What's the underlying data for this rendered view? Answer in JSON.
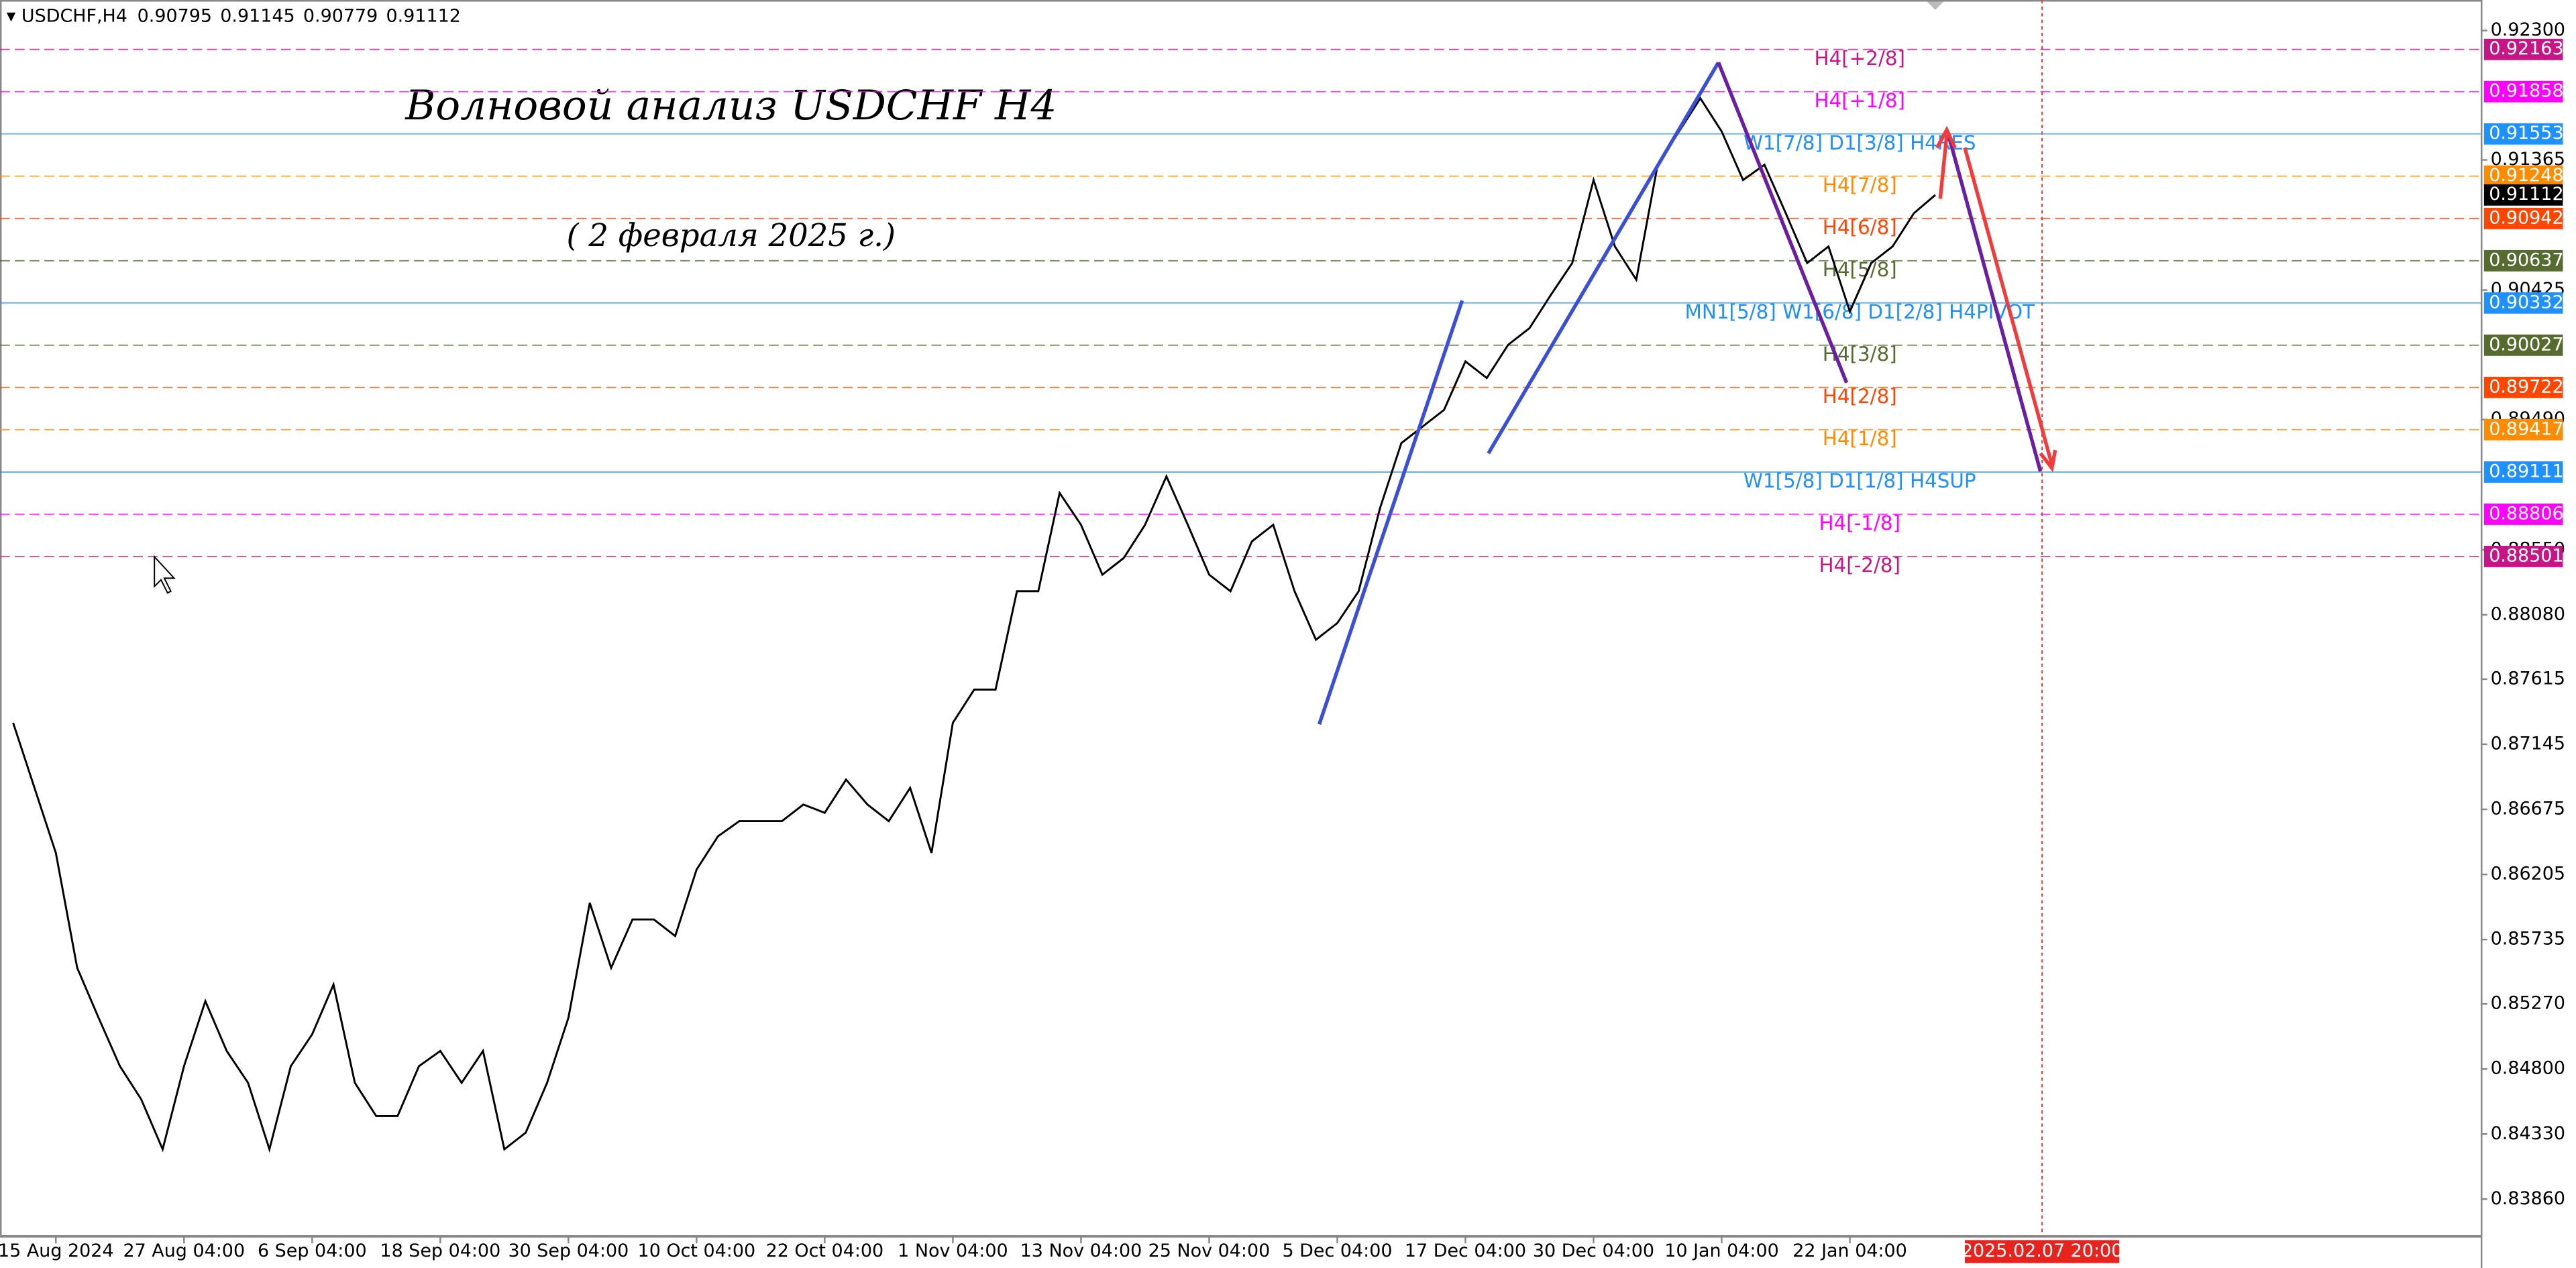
{
  "chart_data": {
    "type": "line",
    "symbol": "USDCHF,H4",
    "ohlc": [
      0.90795,
      0.91145,
      0.90779,
      0.91112
    ],
    "title": "Волновой анализ USDCHF H4",
    "subtitle": "( 2 февраля 2025 г.)",
    "color": "#000000",
    "categories": [
      null,
      null,
      "15 Aug 2024",
      null,
      null,
      null,
      null,
      null,
      "27 Aug 04:00",
      null,
      null,
      null,
      null,
      null,
      "6 Sep 04:00",
      null,
      null,
      null,
      null,
      null,
      "18 Sep 04:00",
      null,
      null,
      null,
      null,
      null,
      "30 Sep 04:00",
      null,
      null,
      null,
      null,
      null,
      "10 Oct 04:00",
      null,
      null,
      null,
      null,
      null,
      "22 Oct 04:00",
      null,
      null,
      null,
      null,
      null,
      "1 Nov 04:00",
      null,
      null,
      null,
      null,
      null,
      "13 Nov 04:00",
      null,
      null,
      null,
      null,
      null,
      "25 Nov 04:00",
      null,
      null,
      null,
      null,
      null,
      "5 Dec 04:00",
      null,
      null,
      null,
      null,
      null,
      "17 Dec 04:00",
      null,
      null,
      null,
      null,
      null,
      "30 Dec 04:00",
      null,
      null,
      null,
      null,
      null,
      "10 Jan 04:00",
      null,
      null,
      null,
      null,
      null,
      "22 Jan 04:00",
      null,
      null,
      null,
      null
    ],
    "values": [
      0.873,
      0.8683,
      0.8636,
      0.8553,
      0.8517,
      0.8482,
      0.8458,
      0.8422,
      0.8482,
      0.8529,
      0.8493,
      0.847,
      0.8422,
      0.8482,
      0.8505,
      0.8541,
      0.847,
      0.8446,
      0.8446,
      0.8482,
      0.8493,
      0.847,
      0.8493,
      0.8422,
      0.8434,
      0.847,
      0.8517,
      0.86,
      0.8553,
      0.8588,
      0.8588,
      0.8576,
      0.8624,
      0.8648,
      0.8659,
      0.8659,
      0.8659,
      0.8671,
      0.8665,
      0.8689,
      0.8671,
      0.8659,
      0.8683,
      0.8636,
      0.873,
      0.8754,
      0.8754,
      0.8825,
      0.8825,
      0.8896,
      0.8873,
      0.8837,
      0.8849,
      0.8873,
      0.8908,
      0.8873,
      0.8837,
      0.8825,
      0.8861,
      0.8873,
      0.8825,
      0.879,
      0.8802,
      0.8825,
      0.8885,
      0.8932,
      0.8944,
      0.8956,
      0.8991,
      0.8979,
      0.9003,
      0.9015,
      0.9039,
      0.9062,
      0.9122,
      0.9074,
      0.905,
      0.9133,
      0.9157,
      0.9181,
      0.9157,
      0.9122,
      0.9133,
      0.9098,
      0.9062,
      0.9074,
      0.9027,
      0.9062,
      0.9074,
      0.9098,
      0.91112
    ],
    "ylim": [
      0.836,
      0.9252
    ],
    "yticks": [
      {
        "value": 0.923,
        "label": "0.92300"
      },
      {
        "value": 0.91365,
        "label": "0.91365"
      },
      {
        "value": 0.90425,
        "label": "0.90425"
      },
      {
        "value": 0.8949,
        "label": "0.89490"
      },
      {
        "value": 0.8855,
        "label": "0.88550"
      },
      {
        "value": 0.8808,
        "label": "0.88080"
      },
      {
        "value": 0.87615,
        "label": "0.87615"
      },
      {
        "value": 0.87145,
        "label": "0.87145"
      },
      {
        "value": 0.86675,
        "label": "0.86675"
      },
      {
        "value": 0.86205,
        "label": "0.86205"
      },
      {
        "value": 0.85735,
        "label": "0.85735"
      },
      {
        "value": 0.8527,
        "label": "0.85270"
      },
      {
        "value": 0.848,
        "label": "0.84800"
      },
      {
        "value": 0.8433,
        "label": "0.84330"
      },
      {
        "value": 0.8386,
        "label": "0.83860"
      }
    ],
    "levels": [
      {
        "price": 0.92163,
        "label": "H4[+2/8]",
        "color": "#c71585",
        "dashed": true
      },
      {
        "price": 0.91858,
        "label": "H4[+1/8]",
        "color": "#ff00ff",
        "dashed": true
      },
      {
        "price": 0.91553,
        "label": "W1[7/8] D1[3/8] H4RES",
        "color": "#1e90ff",
        "dashed": false
      },
      {
        "price": 0.91248,
        "label": "H4[7/8]",
        "color": "#ff8c00",
        "dashed": true
      },
      {
        "price": 0.90942,
        "label": "H4[6/8]",
        "color": "#ff4500",
        "dashed": true
      },
      {
        "price": 0.90637,
        "label": "H4[5/8]",
        "color": "#556b2f",
        "dashed": true
      },
      {
        "price": 0.90332,
        "label": "MN1[5/8] W1[6/8] D1[2/8] H4PIVOT",
        "color": "#1e90ff",
        "dashed": false
      },
      {
        "price": 0.90027,
        "label": "H4[3/8]",
        "color": "#556b2f",
        "dashed": true
      },
      {
        "price": 0.89722,
        "label": "H4[2/8]",
        "color": "#ff4500",
        "dashed": true
      },
      {
        "price": 0.89417,
        "label": "H4[1/8]",
        "color": "#ff8c00",
        "dashed": true
      },
      {
        "price": 0.89111,
        "label": "W1[5/8] D1[1/8] H4SUP",
        "color": "#1e90ff",
        "dashed": false
      },
      {
        "price": 0.88806,
        "label": "H4[-1/8]",
        "color": "#ff00ff",
        "dashed": true
      },
      {
        "price": 0.88501,
        "label": "H4[-2/8]",
        "color": "#c71585",
        "dashed": true
      }
    ],
    "time_marker": "2025.02.07 20:00"
  }
}
